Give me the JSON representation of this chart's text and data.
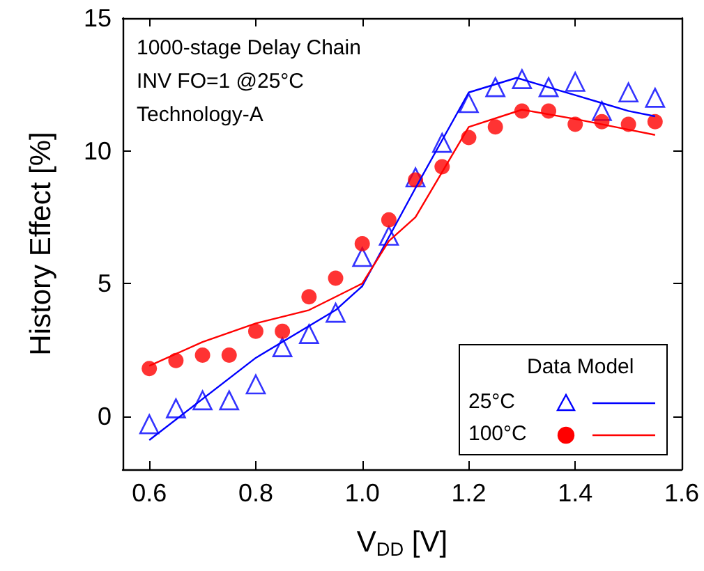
{
  "chart_data": {
    "type": "scatter",
    "xlabel": "V$_{DD}$ [V]",
    "ylabel": "History Effect [%]",
    "annotations": [
      "1000-stage Delay Chain",
      "INV FO=1 @25°C",
      "Technology-A"
    ],
    "legend_title": "Data Model",
    "legend": "bottom right",
    "x": [
      0.6,
      0.65,
      0.7,
      0.75,
      0.8,
      0.85,
      0.9,
      0.95,
      1.0,
      1.05,
      1.1,
      1.15,
      1.2,
      1.25,
      1.3,
      1.35,
      1.4,
      1.45,
      1.5,
      1.55
    ],
    "series": [
      {
        "name": "25°C",
        "marker": "triangle",
        "color": "#0000ff",
        "values": [
          -0.3,
          0.3,
          0.6,
          0.6,
          1.2,
          2.6,
          3.1,
          3.9,
          6.0,
          6.8,
          9.0,
          10.3,
          11.8,
          12.4,
          12.7,
          12.4,
          12.6,
          11.5,
          12.2,
          12.0
        ]
      },
      {
        "type": "line",
        "marker": "none",
        "color": "#0000ff",
        "x": [
          0.6,
          0.8,
          0.95,
          1.0,
          1.1,
          1.2,
          1.29,
          1.4,
          1.45,
          1.5,
          1.55
        ],
        "values": [
          -0.9,
          2.2,
          4.0,
          4.9,
          8.6,
          12.2,
          12.75,
          12.1,
          11.8,
          11.5,
          11.3
        ]
      },
      {
        "name": "100°C",
        "marker": "circle",
        "color": "#ff0000",
        "values": [
          1.8,
          2.1,
          2.3,
          2.3,
          3.2,
          3.2,
          4.5,
          5.2,
          6.5,
          7.4,
          8.9,
          9.4,
          10.5,
          10.9,
          11.5,
          11.5,
          11.0,
          11.1,
          11.0,
          11.1
        ]
      },
      {
        "type": "line",
        "marker": "none",
        "color": "#ff0000",
        "x": [
          0.6,
          0.7,
          0.8,
          0.9,
          0.95,
          1.0,
          1.05,
          1.1,
          1.2,
          1.3,
          1.4,
          1.5,
          1.55
        ],
        "values": [
          1.9,
          2.8,
          3.5,
          4.0,
          4.5,
          5.0,
          6.6,
          7.5,
          10.9,
          11.55,
          11.2,
          10.8,
          10.6
        ]
      }
    ],
    "xlim": [
      0.55,
      1.6
    ],
    "xticks": [
      0.6,
      0.8,
      {
        "value": 1,
        "label": "1.0"
      },
      1.2,
      1.4,
      1.6
    ],
    "ylim": [
      -2,
      15
    ],
    "yticks": [
      0,
      5,
      10,
      15
    ],
    "grid": false
  }
}
